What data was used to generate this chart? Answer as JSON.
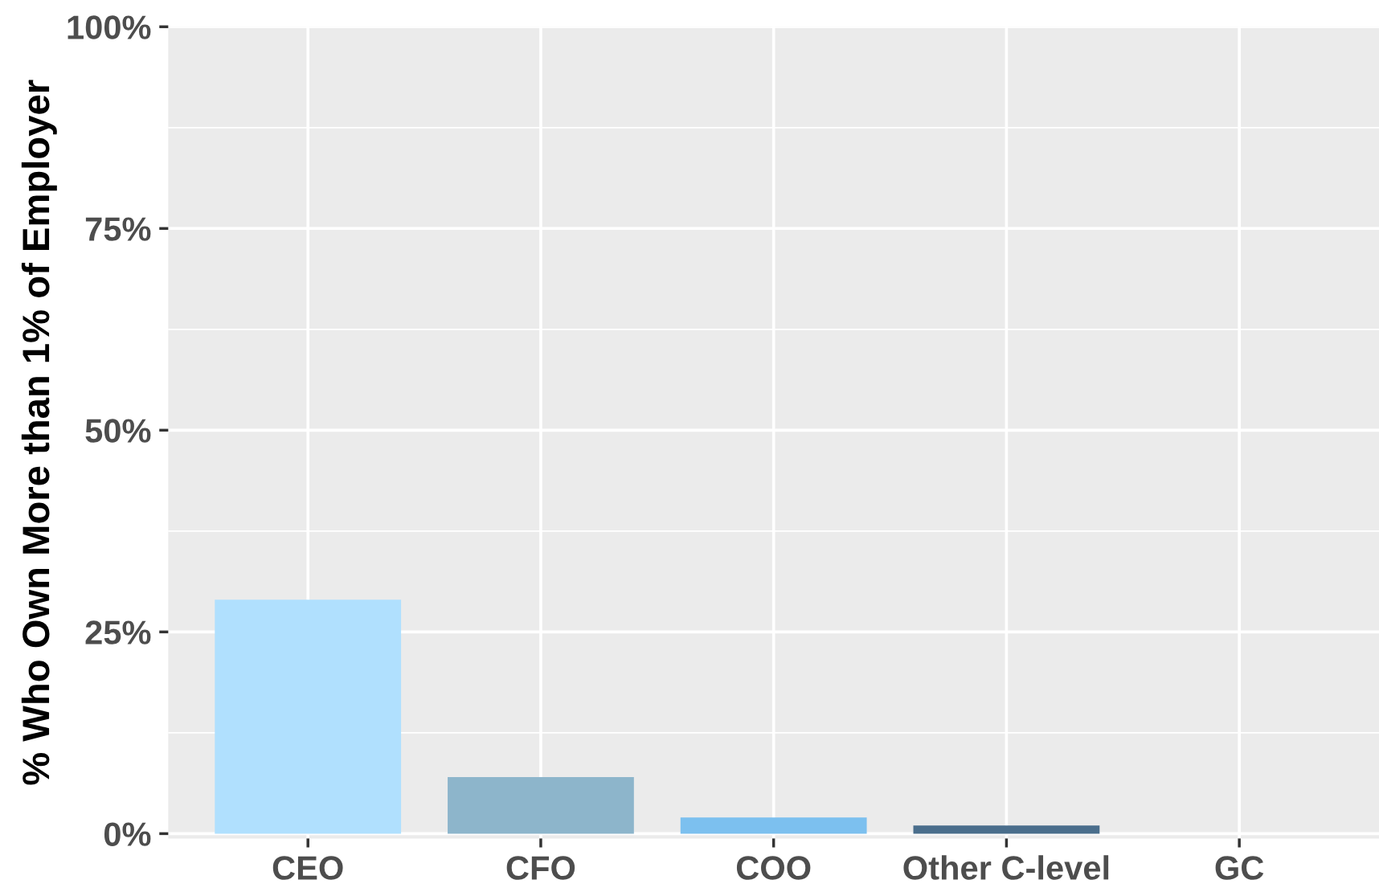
{
  "chart_data": {
    "type": "bar",
    "ylabel": "% Who Own More than 1% of Employer",
    "categories": [
      "CEO",
      "CFO",
      "COO",
      "Other C-level",
      "GC"
    ],
    "values": [
      29,
      7,
      2,
      1,
      0
    ],
    "colors": [
      "#b0e0fe",
      "#8db5cb",
      "#7cc0ef",
      "#4a6e8c",
      "#4a6e8c"
    ],
    "ylim": [
      -0.6,
      100
    ],
    "yticks": [
      {
        "value": 0,
        "label": "0%"
      },
      {
        "value": 25,
        "label": "25%"
      },
      {
        "value": 50,
        "label": "50%"
      },
      {
        "value": 75,
        "label": "75%"
      },
      {
        "value": 100,
        "label": "100%"
      }
    ],
    "grid": true,
    "legend": false
  }
}
